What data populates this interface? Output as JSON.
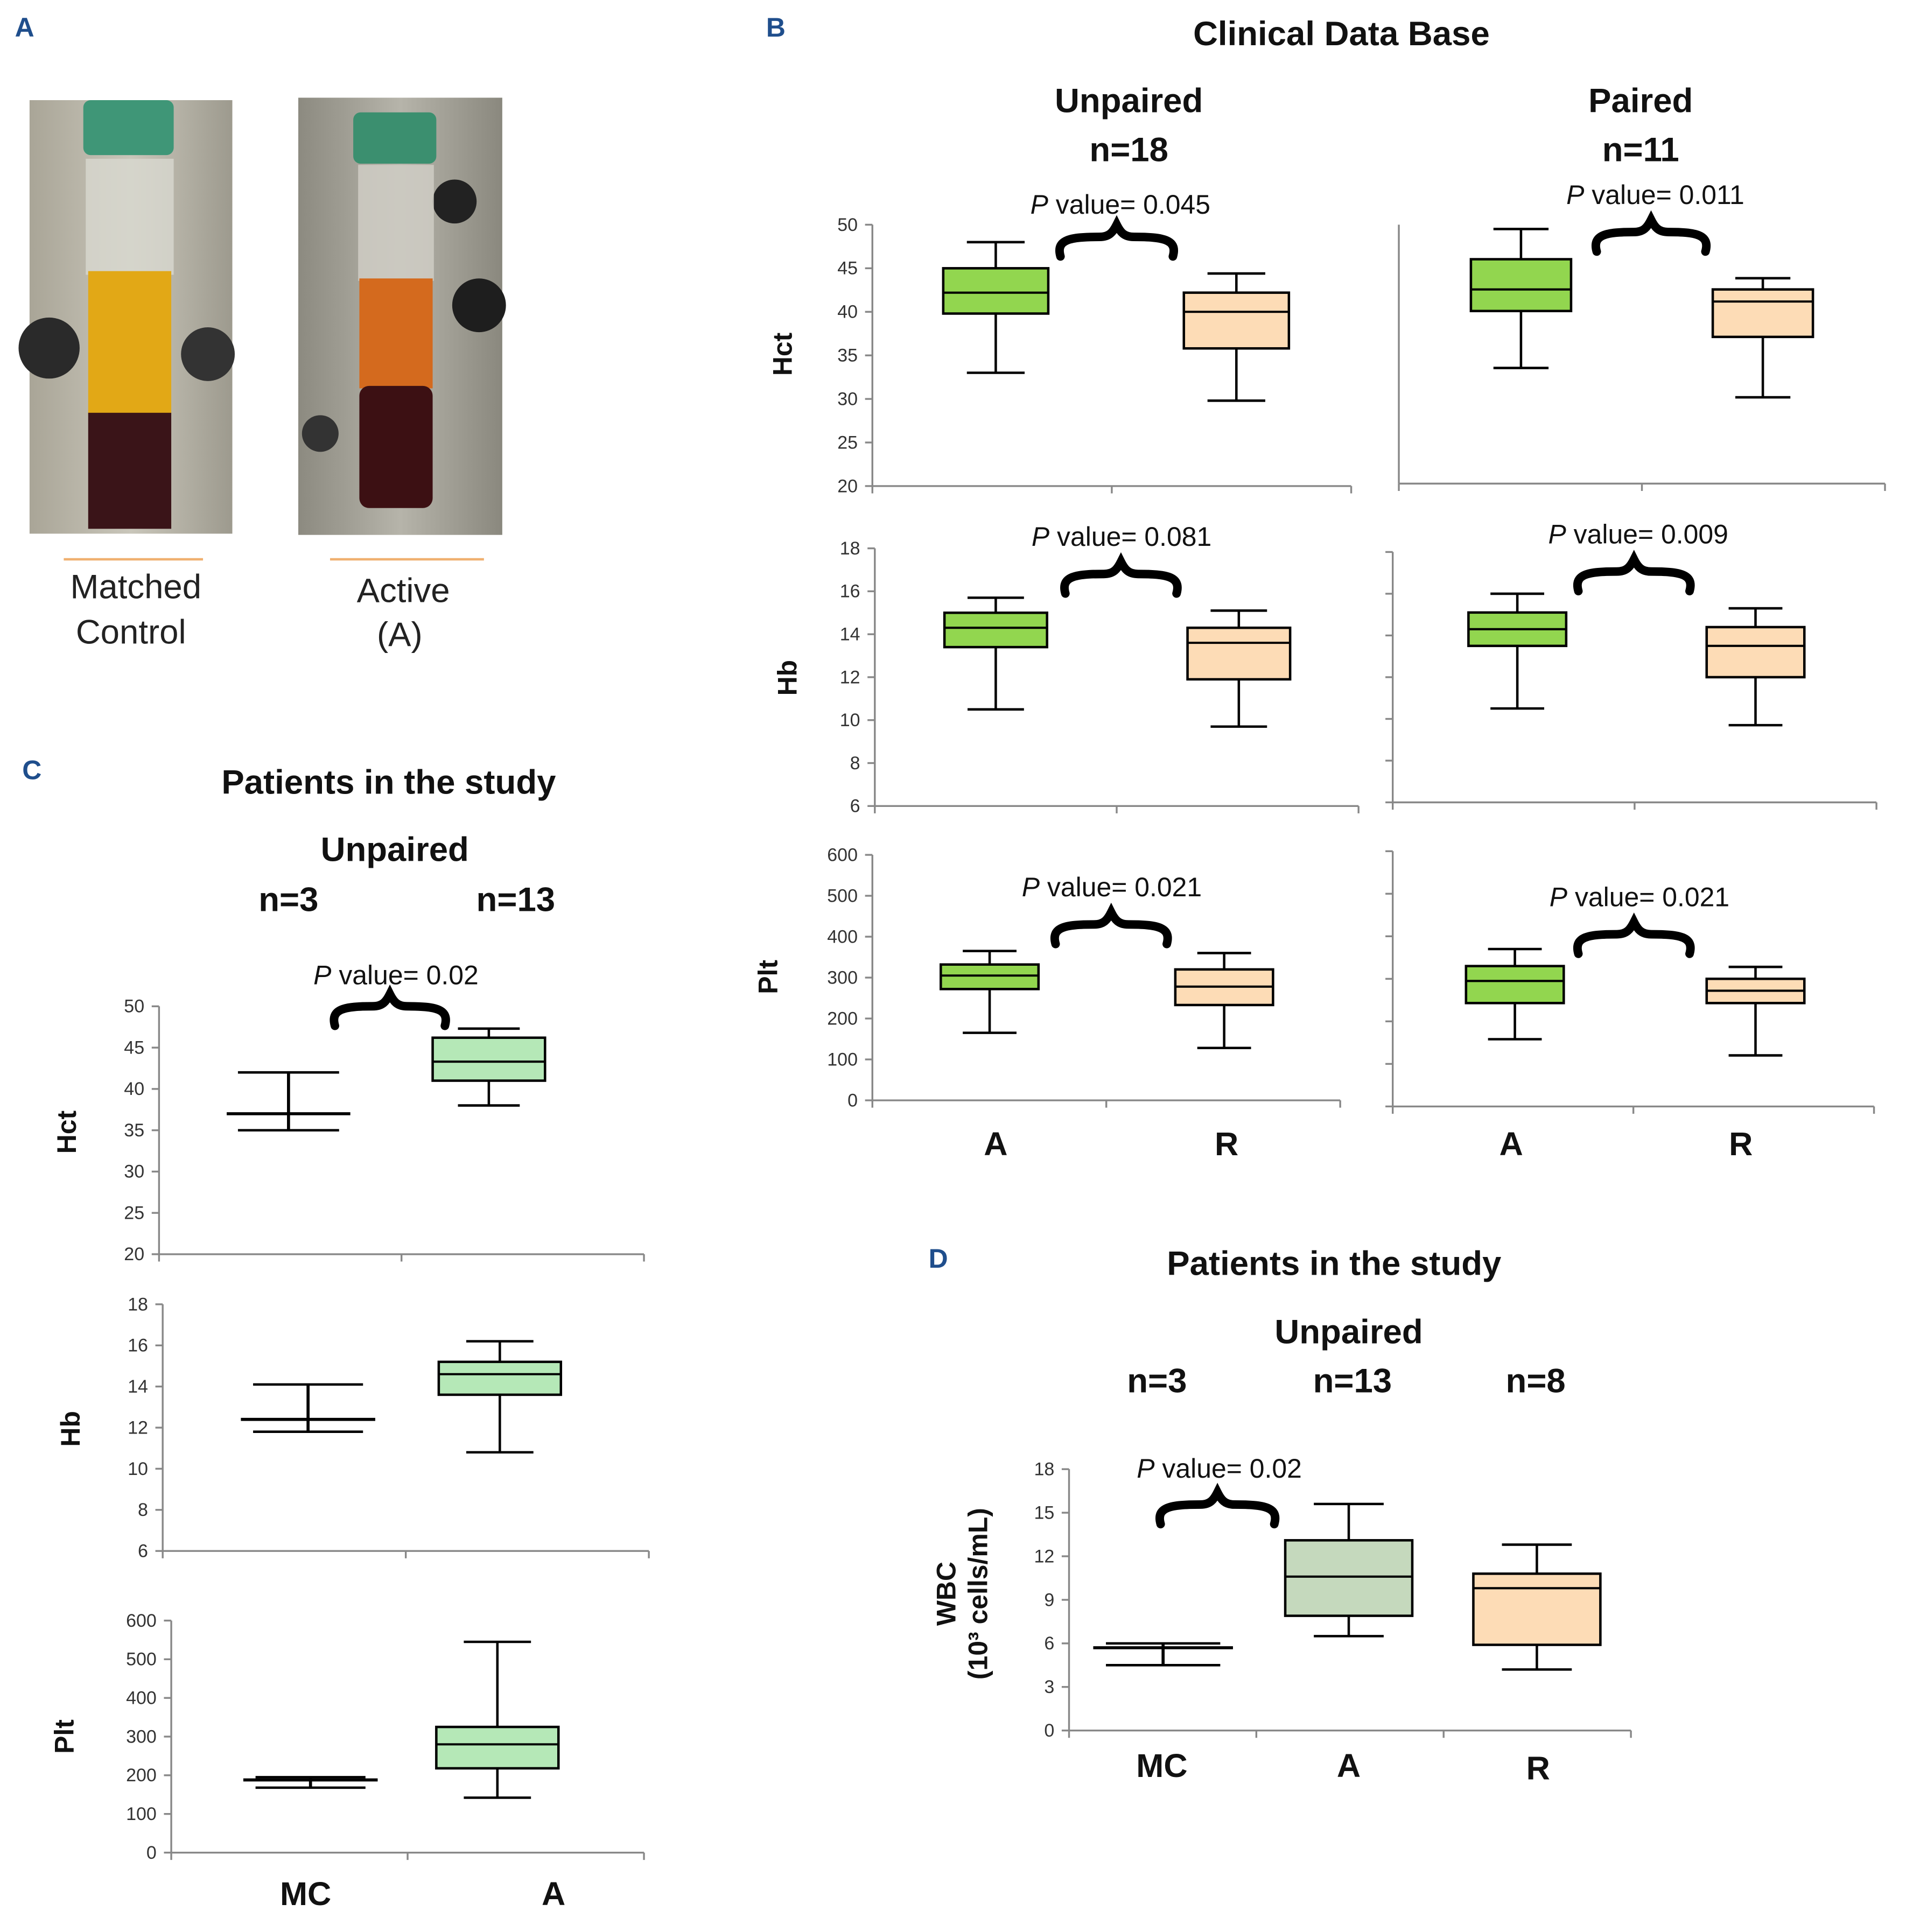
{
  "panel_labels": {
    "a": "A",
    "b": "B",
    "c": "C",
    "d": "D"
  },
  "panel_a": {
    "photos": [
      {
        "caption_lines": [
          "Matched",
          "Control"
        ]
      },
      {
        "caption_lines": [
          "Active",
          "(A)"
        ]
      }
    ]
  },
  "panel_b": {
    "title": "Clinical Data Base",
    "groups": [
      {
        "label": "Unpaired",
        "n": "n=18"
      },
      {
        "label": "Paired",
        "n": "n=11"
      }
    ],
    "x_labels": [
      "A",
      "R",
      "A",
      "R"
    ]
  },
  "panel_c": {
    "title": "Patients in the study",
    "subtitle": "Unpaired",
    "n_labels": [
      "n=3",
      "n=13"
    ],
    "x_labels": [
      "MC",
      "A"
    ]
  },
  "panel_d": {
    "title": "Patients in the study",
    "subtitle": "Unpaired",
    "n_labels": [
      "n=3",
      "n=13",
      "n=8"
    ],
    "x_labels": [
      "MC",
      "A",
      "R"
    ],
    "ylabel_lines": [
      "WBC",
      "(10³ cells/mL)"
    ]
  },
  "colors": {
    "A_bright": "#92d64f",
    "R": "#fddcb6",
    "A_light": "#b5e8b7",
    "A_gray": "#c5d9bd",
    "header": "#1f4e8c"
  },
  "chart_data": [
    {
      "id": "b-hct-unpaired",
      "type": "box",
      "ylabel": "Hct",
      "ylim": [
        20,
        50
      ],
      "yticks": [
        20,
        25,
        30,
        35,
        40,
        45,
        50
      ],
      "show_tick_labels": true,
      "annotation": "P value= 0.045",
      "boxes": [
        {
          "category": "A",
          "min": 33,
          "q1": 39.8,
          "median": 42.2,
          "q3": 45,
          "max": 48,
          "color": "#92d64f"
        },
        {
          "category": "R",
          "min": 29.8,
          "q1": 35.8,
          "median": 40,
          "q3": 42.2,
          "max": 44.4,
          "color": "#fddcb6"
        }
      ]
    },
    {
      "id": "b-hct-paired",
      "type": "box",
      "ylabel": "",
      "ylim": [
        20,
        50
      ],
      "yticks": [],
      "show_tick_labels": false,
      "annotation": "P value= 0.011",
      "boxes": [
        {
          "category": "A",
          "min": 33.4,
          "q1": 40,
          "median": 42.5,
          "q3": 46,
          "max": 49.5,
          "color": "#92d64f"
        },
        {
          "category": "R",
          "min": 30,
          "q1": 37,
          "median": 41.1,
          "q3": 42.5,
          "max": 43.8,
          "color": "#fddcb6"
        }
      ]
    },
    {
      "id": "b-hb-unpaired",
      "type": "box",
      "ylabel": "Hb",
      "ylim": [
        6,
        18
      ],
      "yticks": [
        6,
        8,
        10,
        12,
        14,
        16,
        18
      ],
      "show_tick_labels": true,
      "annotation": "P value= 0.081",
      "boxes": [
        {
          "category": "A",
          "min": 10.5,
          "q1": 13.4,
          "median": 14.3,
          "q3": 15,
          "max": 15.7,
          "color": "#92d64f"
        },
        {
          "category": "R",
          "min": 9.7,
          "q1": 11.9,
          "median": 13.6,
          "q3": 14.3,
          "max": 15.1,
          "color": "#fddcb6"
        }
      ]
    },
    {
      "id": "b-hb-paired",
      "type": "box",
      "ylabel": "",
      "ylim": [
        6,
        18
      ],
      "yticks": [
        6,
        8,
        10,
        12,
        14,
        16,
        18
      ],
      "show_tick_labels": false,
      "annotation": "P value= 0.009",
      "boxes": [
        {
          "category": "A",
          "min": 10.5,
          "q1": 13.5,
          "median": 14.3,
          "q3": 15.1,
          "max": 16,
          "color": "#92d64f"
        },
        {
          "category": "R",
          "min": 9.7,
          "q1": 12,
          "median": 13.5,
          "q3": 14.4,
          "max": 15.3,
          "color": "#fddcb6"
        }
      ]
    },
    {
      "id": "b-plt-unpaired",
      "type": "box",
      "ylabel": "Plt",
      "ylim": [
        0,
        600
      ],
      "yticks": [
        0,
        100,
        200,
        300,
        400,
        500,
        600
      ],
      "show_tick_labels": true,
      "annotation": "P value= 0.021",
      "boxes": [
        {
          "category": "A",
          "min": 165,
          "q1": 272,
          "median": 305,
          "q3": 332,
          "max": 365,
          "color": "#92d64f"
        },
        {
          "category": "R",
          "min": 128,
          "q1": 233,
          "median": 278,
          "q3": 320,
          "max": 360,
          "color": "#fddcb6"
        }
      ]
    },
    {
      "id": "b-plt-paired",
      "type": "box",
      "ylabel": "",
      "ylim": [
        0,
        600
      ],
      "yticks": [
        0,
        100,
        200,
        300,
        400,
        500,
        600
      ],
      "show_tick_labels": false,
      "annotation": "P value= 0.021",
      "boxes": [
        {
          "category": "A",
          "min": 158,
          "q1": 243,
          "median": 295,
          "q3": 330,
          "max": 370,
          "color": "#92d64f"
        },
        {
          "category": "R",
          "min": 120,
          "q1": 243,
          "median": 272,
          "q3": 300,
          "max": 328,
          "color": "#fddcb6"
        }
      ]
    },
    {
      "id": "c-hct",
      "type": "box",
      "ylabel": "Hct",
      "ylim": [
        20,
        50
      ],
      "yticks": [
        20,
        25,
        30,
        35,
        40,
        45,
        50
      ],
      "show_tick_labels": true,
      "annotation": "P value= 0.02",
      "boxes": [
        {
          "category": "MC",
          "min": 35,
          "median": 37,
          "max": 42
        },
        {
          "category": "A",
          "min": 38,
          "q1": 41,
          "median": 43.3,
          "q3": 46.2,
          "max": 47.3,
          "color": "#b5e8b7"
        }
      ]
    },
    {
      "id": "c-hb",
      "type": "box",
      "ylabel": "Hb",
      "ylim": [
        6,
        18
      ],
      "yticks": [
        6,
        8,
        10,
        12,
        14,
        16,
        18
      ],
      "show_tick_labels": true,
      "annotation": "",
      "boxes": [
        {
          "category": "MC",
          "min": 11.8,
          "median": 12.4,
          "max": 14.1
        },
        {
          "category": "A",
          "min": 10.8,
          "q1": 13.6,
          "median": 14.6,
          "q3": 15.2,
          "max": 16.2,
          "color": "#b5e8b7"
        }
      ]
    },
    {
      "id": "c-plt",
      "type": "box",
      "ylabel": "Plt",
      "ylim": [
        0,
        600
      ],
      "yticks": [
        0,
        100,
        200,
        300,
        400,
        500,
        600
      ],
      "show_tick_labels": true,
      "annotation": "",
      "boxes": [
        {
          "category": "MC",
          "min": 168,
          "median": 188,
          "max": 195
        },
        {
          "category": "A",
          "min": 142,
          "q1": 218,
          "median": 280,
          "q3": 325,
          "max": 545,
          "color": "#b5e8b7"
        }
      ]
    },
    {
      "id": "d-wbc",
      "type": "box",
      "ylabel": "",
      "ylim": [
        0,
        18
      ],
      "yticks": [
        0,
        3,
        6,
        9,
        12,
        15,
        18
      ],
      "show_tick_labels": true,
      "annotation": "P value= 0.02",
      "boxes": [
        {
          "category": "MC",
          "min": 4.5,
          "median": 5.7,
          "max": 6
        },
        {
          "category": "A",
          "min": 6.5,
          "q1": 7.9,
          "median": 10.6,
          "q3": 13.1,
          "max": 15.6,
          "color": "#c5d9bd"
        },
        {
          "category": "R",
          "min": 4.2,
          "q1": 5.9,
          "median": 9.8,
          "q3": 10.8,
          "max": 12.8,
          "color": "#fddcb6"
        }
      ]
    }
  ]
}
